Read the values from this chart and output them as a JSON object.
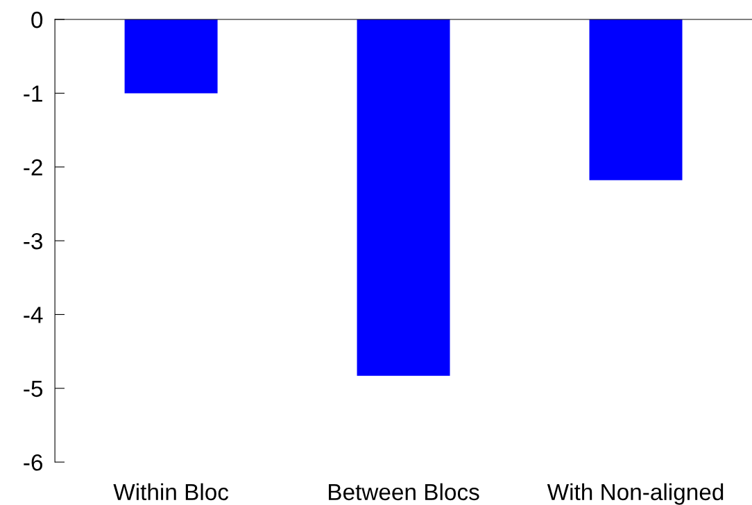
{
  "chart_data": {
    "type": "bar",
    "categories": [
      "Within Bloc",
      "Between Blocs",
      "With Non-aligned"
    ],
    "values": [
      -1.0,
      -4.83,
      -2.18
    ],
    "color": "#0000ff",
    "ylim": [
      -6,
      0
    ],
    "yticks": [
      -6,
      -5,
      -4,
      -3,
      -2,
      -1,
      0
    ],
    "grid": false,
    "legend": false
  }
}
